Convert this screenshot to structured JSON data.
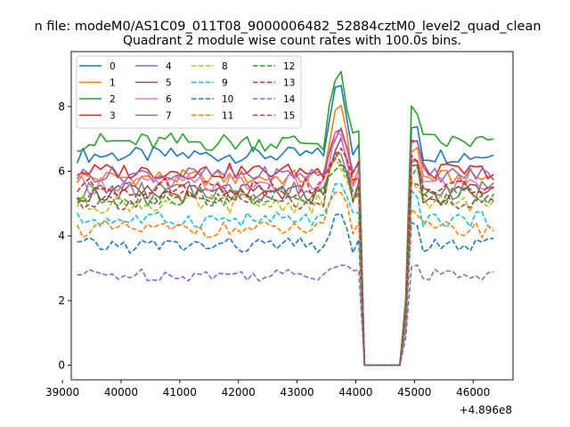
{
  "chart_data": {
    "type": "line",
    "suptitle": "n file: modeM0/AS1C09_011T08_9000006482_52884cztM0_level2_quad_clean",
    "title": "Quadrant 2 module wise count rates with 100.0s bins.",
    "xlabel": "",
    "ylabel": "",
    "x_offset_label": "+4.896e8",
    "xlim": [
      39150,
      46680
    ],
    "ylim": [
      -0.45,
      9.7
    ],
    "xticks": [
      39000,
      40000,
      41000,
      42000,
      43000,
      44000,
      45000,
      46000
    ],
    "yticks": [
      0,
      2,
      4,
      6,
      8
    ],
    "grid": false,
    "legend": {
      "placement": "top-left",
      "columns": 4
    },
    "x": {
      "start": 39250,
      "step": 100,
      "count": 72
    },
    "series": [
      {
        "name": "0",
        "color": "#1f77b4",
        "dash": "solid",
        "level": 6.5,
        "amp": 0.25,
        "peak": 8.9
      },
      {
        "name": "1",
        "color": "#ff7f0e",
        "dash": "solid",
        "level": 5.8,
        "amp": 0.25,
        "peak": 8.3
      },
      {
        "name": "2",
        "color": "#2ca02c",
        "dash": "solid",
        "level": 6.9,
        "amp": 0.3,
        "peak": 9.2
      },
      {
        "name": "3",
        "color": "#d62728",
        "dash": "solid",
        "level": 6.0,
        "amp": 0.25,
        "peak": 7.6
      },
      {
        "name": "4",
        "color": "#9467bd",
        "dash": "solid",
        "level": 5.9,
        "amp": 0.25,
        "peak": 7.4
      },
      {
        "name": "5",
        "color": "#8c564b",
        "dash": "solid",
        "level": 5.3,
        "amp": 0.3,
        "peak": 7.1
      },
      {
        "name": "6",
        "color": "#e377c2",
        "dash": "solid",
        "level": 5.6,
        "amp": 0.3,
        "peak": 7.2
      },
      {
        "name": "7",
        "color": "#7f7f7f",
        "dash": "solid",
        "level": 5.4,
        "amp": 0.3,
        "peak": 7.0
      },
      {
        "name": "8",
        "color": "#bcbd22",
        "dash": "dashed",
        "level": 5.0,
        "amp": 0.3,
        "peak": 6.5
      },
      {
        "name": "9",
        "color": "#17becf",
        "dash": "dashed",
        "level": 4.5,
        "amp": 0.25,
        "peak": 5.6
      },
      {
        "name": "10",
        "color": "#1f77b4",
        "dash": "dashed",
        "level": 3.7,
        "amp": 0.25,
        "peak": 4.6
      },
      {
        "name": "11",
        "color": "#ff7f0e",
        "dash": "dashed",
        "level": 4.2,
        "amp": 0.25,
        "peak": 5.4
      },
      {
        "name": "12",
        "color": "#2ca02c",
        "dash": "dashed",
        "level": 5.2,
        "amp": 0.3,
        "peak": 6.4
      },
      {
        "name": "13",
        "color": "#d62728",
        "dash": "dashed",
        "level": 5.5,
        "amp": 0.3,
        "peak": 6.9
      },
      {
        "name": "14",
        "color": "#9467bd",
        "dash": "dashed",
        "level": 2.8,
        "amp": 0.2,
        "peak": 3.3
      },
      {
        "name": "15",
        "color": "#8c564b",
        "dash": "dashed",
        "level": 5.1,
        "amp": 0.3,
        "peak": 6.6
      }
    ]
  }
}
